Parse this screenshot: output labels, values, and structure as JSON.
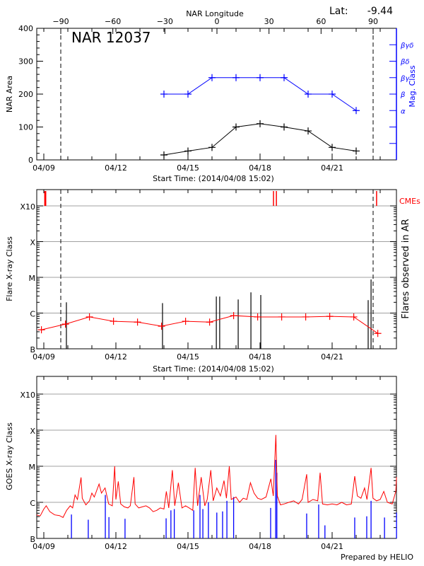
{
  "header": {
    "top_axis_title": "NAR Longitude",
    "lat_label": "Lat:",
    "lat_value": "-9.44",
    "region_label": "NAR 12037",
    "footer": "Prepared by HELIO"
  },
  "colors": {
    "area": "#000000",
    "mag_class": "#0000ff",
    "flare_avg": "#ff0000",
    "cme": "#ff0000",
    "goes_long": "#ff0000",
    "goes_short": "#0000ff",
    "grid": "#a0a0a0"
  },
  "chart_data": [
    {
      "type": "line",
      "panel": "nar",
      "xlabel": "Start Time: (2014/04/08 15:02)",
      "x_unit": "day of April 2014",
      "x_ticks": [
        {
          "day": 9,
          "label": "04/09"
        },
        {
          "day": 12,
          "label": "04/12"
        },
        {
          "day": 15,
          "label": "04/15"
        },
        {
          "day": 18,
          "label": "04/18"
        },
        {
          "day": 21,
          "label": "04/21"
        }
      ],
      "top_axis": {
        "label": "NAR Longitude",
        "ticks": [
          -90,
          -60,
          -30,
          0,
          30,
          60,
          90
        ]
      },
      "ylabel": "NAR Area",
      "ylim": [
        0,
        400
      ],
      "y_ticks": [
        0,
        100,
        200,
        300,
        400
      ],
      "y2label": "Mag. Class",
      "y2_ticks": [
        {
          "label": "α",
          "level": 150
        },
        {
          "label": "β",
          "level": 200
        },
        {
          "label": "βγ",
          "level": 250
        },
        {
          "label": "βδ",
          "level": 300
        },
        {
          "label": "βγδ",
          "level": 350
        }
      ],
      "limb_longitudes": [
        -90,
        90
      ],
      "series": [
        {
          "days": [
            14,
            15,
            16,
            17,
            18,
            19,
            20,
            21,
            22
          ],
          "values": [
            15,
            27,
            38,
            100,
            110,
            100,
            88,
            38,
            27
          ]
        },
        {
          "days": [
            14,
            15,
            16,
            17,
            18,
            19,
            20,
            21,
            22
          ],
          "classes": [
            "β",
            "β",
            "βγ",
            "βγ",
            "βγ",
            "βγ",
            "β",
            "β",
            "α"
          ]
        }
      ]
    },
    {
      "type": "line",
      "panel": "flares",
      "xlabel": "Start Time: (2014/04/08 15:02)",
      "ylabel": "Flare X-ray Class",
      "y2label": "Flares observed in AR",
      "cme_label": "CMEs",
      "y_scale": "log",
      "y_ticks": [
        "B",
        "C",
        "M",
        "X",
        "X10"
      ],
      "grid": true,
      "flare_average": {
        "days": [
          8.9,
          9.9,
          10.9,
          11.9,
          12.9,
          13.9,
          14.9,
          15.9,
          16.9,
          17.9,
          18.9,
          19.9,
          20.9,
          21.9,
          22.9
        ],
        "classes": [
          "B3.4",
          "B4.9",
          "B7.8",
          "B5.9",
          "B5.6",
          "B4.3",
          "B5.9",
          "B5.6",
          "B8.5",
          "B7.8",
          "B7.8",
          "B7.8",
          "B8.1",
          "B7.8",
          "B2.7"
        ]
      },
      "flares": [
        {
          "day": 9.94,
          "class": "C2.0"
        },
        {
          "day": 13.94,
          "class": "C1.9"
        },
        {
          "day": 16.18,
          "class": "C2.9"
        },
        {
          "day": 16.32,
          "class": "C2.9"
        },
        {
          "day": 17.09,
          "class": "C2.4"
        },
        {
          "day": 17.62,
          "class": "C3.8"
        },
        {
          "day": 18.03,
          "class": "C3.2"
        },
        {
          "day": 22.5,
          "class": "C2.3"
        },
        {
          "day": 22.62,
          "class": "C8.7"
        }
      ],
      "cmes": [
        9.04,
        9.08,
        18.56,
        18.68,
        22.85
      ]
    },
    {
      "type": "line",
      "panel": "goes",
      "ylabel": "GOES X-ray Class",
      "y_scale": "log",
      "y_ticks": [
        "B",
        "C",
        "M",
        "X",
        "X10"
      ],
      "grid": true,
      "long_channel": [
        [
          8.7,
          "B4.5"
        ],
        [
          8.85,
          "B4.2"
        ],
        [
          9.0,
          "B6.5"
        ],
        [
          9.1,
          "B8"
        ],
        [
          9.25,
          "B5.5"
        ],
        [
          9.45,
          "B4.5"
        ],
        [
          9.65,
          "B4.3"
        ],
        [
          9.8,
          "B3.8"
        ],
        [
          9.95,
          "B6"
        ],
        [
          10.1,
          "B8"
        ],
        [
          10.2,
          "B7"
        ],
        [
          10.3,
          "C1.6"
        ],
        [
          10.4,
          "C1.2"
        ],
        [
          10.55,
          "C4.9"
        ],
        [
          10.6,
          "C1.3"
        ],
        [
          10.75,
          "B8.5"
        ],
        [
          10.9,
          "C1.1"
        ],
        [
          11.0,
          "C1.8"
        ],
        [
          11.1,
          "C1.4"
        ],
        [
          11.3,
          "C3.2"
        ],
        [
          11.4,
          "C1.8"
        ],
        [
          11.55,
          "C2.5"
        ],
        [
          11.7,
          "B9"
        ],
        [
          11.85,
          "B8"
        ],
        [
          11.95,
          "M1.0"
        ],
        [
          12.0,
          "C1.2"
        ],
        [
          12.1,
          "C3.8"
        ],
        [
          12.2,
          "B9"
        ],
        [
          12.35,
          "B7.5"
        ],
        [
          12.5,
          "B7"
        ],
        [
          12.6,
          "B8"
        ],
        [
          12.75,
          "C5.0"
        ],
        [
          12.8,
          "B9"
        ],
        [
          12.95,
          "B7"
        ],
        [
          13.1,
          "B7.5"
        ],
        [
          13.25,
          "B8"
        ],
        [
          13.4,
          "B7"
        ],
        [
          13.55,
          "B5.5"
        ],
        [
          13.7,
          "B6"
        ],
        [
          13.85,
          "B7"
        ],
        [
          14.0,
          "B6.5"
        ],
        [
          14.1,
          "C2.0"
        ],
        [
          14.2,
          "B7"
        ],
        [
          14.35,
          "C7.8"
        ],
        [
          14.45,
          "B8"
        ],
        [
          14.6,
          "C3.5"
        ],
        [
          14.75,
          "B7"
        ],
        [
          14.9,
          "B8"
        ],
        [
          15.05,
          "B7"
        ],
        [
          15.2,
          "B6"
        ],
        [
          15.3,
          "C9.0"
        ],
        [
          15.4,
          "B8"
        ],
        [
          15.55,
          "C5"
        ],
        [
          15.7,
          "B8"
        ],
        [
          15.8,
          "C1.2"
        ],
        [
          15.95,
          "C7.8"
        ],
        [
          16.05,
          "C1.1"
        ],
        [
          16.2,
          "C2.5"
        ],
        [
          16.35,
          "C1.5"
        ],
        [
          16.5,
          "C4"
        ],
        [
          16.6,
          "C1.3"
        ],
        [
          16.72,
          "M1.0"
        ],
        [
          16.8,
          "C1.2"
        ],
        [
          17.0,
          "C1.4"
        ],
        [
          17.15,
          "C1.0"
        ],
        [
          17.3,
          "C1.3"
        ],
        [
          17.45,
          "C1.2"
        ],
        [
          17.6,
          "C3.5"
        ],
        [
          17.75,
          "C1.8"
        ],
        [
          17.9,
          "C1.3"
        ],
        [
          18.05,
          "C1.2"
        ],
        [
          18.25,
          "C1.4"
        ],
        [
          18.45,
          "C4.5"
        ],
        [
          18.55,
          "C1.5"
        ],
        [
          18.66,
          "M7.4"
        ],
        [
          18.72,
          "C1.5"
        ],
        [
          18.85,
          "B8.5"
        ],
        [
          19.0,
          "B9"
        ],
        [
          19.2,
          "C1.0"
        ],
        [
          19.4,
          "C1.1"
        ],
        [
          19.6,
          "B9"
        ],
        [
          19.75,
          "C1.2"
        ],
        [
          19.94,
          "C6.0"
        ],
        [
          20.0,
          "C1.0"
        ],
        [
          20.2,
          "C1.2"
        ],
        [
          20.4,
          "C1.1"
        ],
        [
          20.5,
          "C6.6"
        ],
        [
          20.6,
          "B9"
        ],
        [
          20.8,
          "B8.5"
        ],
        [
          21.0,
          "B9"
        ],
        [
          21.2,
          "B8.5"
        ],
        [
          21.4,
          "C1.0"
        ],
        [
          21.6,
          "B8.5"
        ],
        [
          21.8,
          "B9"
        ],
        [
          21.94,
          "C5.3"
        ],
        [
          22.05,
          "C1.5"
        ],
        [
          22.2,
          "C1.3"
        ],
        [
          22.35,
          "C2.5"
        ],
        [
          22.45,
          "C1.2"
        ],
        [
          22.62,
          "C9.0"
        ],
        [
          22.7,
          "C1.3"
        ],
        [
          22.85,
          "C1.1"
        ],
        [
          23.0,
          "C1.2"
        ],
        [
          23.15,
          "C2.0"
        ],
        [
          23.3,
          "C1.0"
        ],
        [
          23.5,
          "B9"
        ],
        [
          23.65,
          "C2.0"
        ],
        [
          23.68,
          "C5.0"
        ]
      ],
      "short_channel": [
        [
          10.15,
          "B4.6"
        ],
        [
          10.85,
          "B3.3"
        ],
        [
          11.56,
          "C1.6"
        ],
        [
          11.71,
          "B3.9"
        ],
        [
          12.38,
          "B3.5"
        ],
        [
          14.09,
          "B3.6"
        ],
        [
          14.29,
          "B6"
        ],
        [
          14.43,
          "B6.5"
        ],
        [
          15.24,
          "B6"
        ],
        [
          15.5,
          "C1.6"
        ],
        [
          15.62,
          "B6.5"
        ],
        [
          15.85,
          "C1.0"
        ],
        [
          16.2,
          "B5.2"
        ],
        [
          16.44,
          "B5.6"
        ],
        [
          16.62,
          "C1.1"
        ],
        [
          16.9,
          "C1.4"
        ],
        [
          18.44,
          "B7"
        ],
        [
          18.65,
          "M1.5"
        ],
        [
          18.7,
          "C6.6"
        ],
        [
          19.94,
          "B4.9"
        ],
        [
          20.44,
          "B8.7"
        ],
        [
          20.7,
          "B2.3"
        ],
        [
          21.94,
          "B3.8"
        ],
        [
          22.44,
          "B4.1"
        ],
        [
          22.62,
          "C1.1"
        ],
        [
          23.18,
          "B3.8"
        ],
        [
          23.68,
          "B5.2"
        ]
      ]
    }
  ]
}
